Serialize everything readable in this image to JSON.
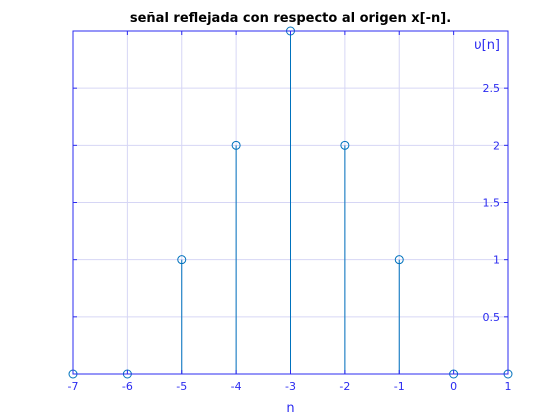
{
  "colors": {
    "axis": "#2b2bf0",
    "grid": "#d6d6f5",
    "stem": "#0072bd",
    "background": "#ffffff",
    "title": "#000000"
  },
  "chart_data": {
    "type": "stem",
    "title": "señal reflejada con respecto al origen x[-n].",
    "xlabel": "n",
    "ylabel": "",
    "annotation": "υ[n]",
    "xlim": [
      -7,
      1
    ],
    "ylim": [
      0,
      3
    ],
    "grid": true,
    "x": [
      -7,
      -6,
      -5,
      -4,
      -3,
      -2,
      -1,
      0,
      1
    ],
    "values": [
      0,
      0,
      1,
      2,
      3,
      2,
      1,
      0,
      0
    ],
    "x_ticks": [
      -7,
      -6,
      -5,
      -4,
      -3,
      -2,
      -1,
      0,
      1
    ],
    "x_tick_labels": [
      "-7",
      "-6",
      "-5",
      "-4",
      "-3",
      "-2",
      "-1",
      "0",
      "1"
    ],
    "y_ticks": [
      0.5,
      1,
      1.5,
      2,
      2.5
    ],
    "y_tick_labels": [
      "0.5",
      "1",
      "1.5",
      "2",
      "2.5"
    ],
    "y_axis_location": "right",
    "marker": "open-circle"
  }
}
